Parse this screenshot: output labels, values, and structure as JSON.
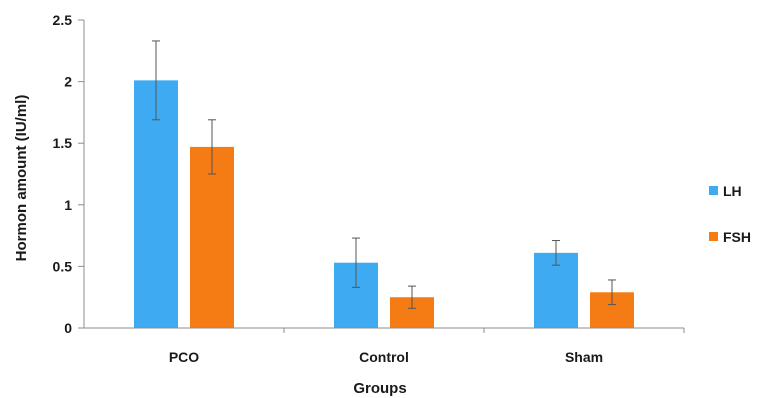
{
  "chart_data": {
    "type": "bar",
    "categories": [
      "PCO",
      "Control",
      "Sham"
    ],
    "series": [
      {
        "name": "LH",
        "color": "#3eaaf2",
        "values": [
          2.01,
          0.53,
          0.61
        ],
        "errors": [
          0.32,
          0.2,
          0.1
        ]
      },
      {
        "name": "FSH",
        "color": "#f57c15",
        "values": [
          1.47,
          0.25,
          0.29
        ],
        "errors": [
          0.22,
          0.09,
          0.1
        ]
      }
    ],
    "xlabel": "Groups",
    "ylabel": "Hormon amount (IU/ml)",
    "ylim": [
      0,
      2.5
    ],
    "yticks": [
      "0",
      "0.5",
      "1",
      "1.5",
      "2",
      "2.5"
    ],
    "grid": false,
    "legend_position": "right"
  }
}
